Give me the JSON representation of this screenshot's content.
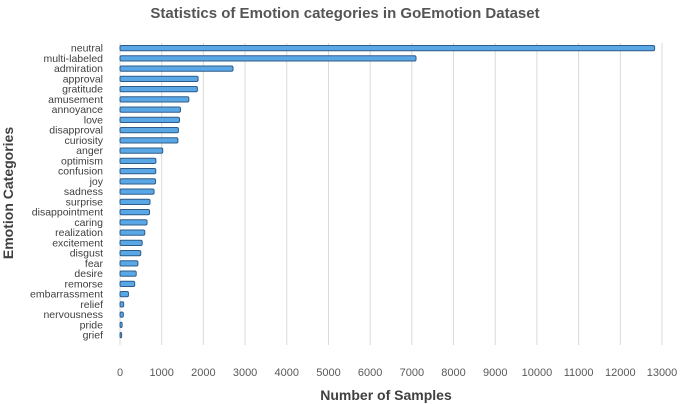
{
  "chart_data": {
    "type": "bar",
    "orientation": "horizontal",
    "title": "Statistics of Emotion categories in GoEmotion Dataset",
    "xlabel": "Number of Samples",
    "ylabel": "Emotion Categories",
    "xlim": [
      0,
      13000
    ],
    "xticks": [
      0,
      1000,
      2000,
      3000,
      4000,
      5000,
      6000,
      7000,
      8000,
      9000,
      10000,
      11000,
      12000,
      13000
    ],
    "grid": true,
    "categories": [
      "neutral",
      "multi-labeled",
      "admiration",
      "approval",
      "gratitude",
      "amusement",
      "annoyance",
      "love",
      "disapproval",
      "curiosity",
      "anger",
      "optimism",
      "confusion",
      "joy",
      "sadness",
      "surprise",
      "disappointment",
      "caring",
      "realization",
      "excitement",
      "disgust",
      "fear",
      "desire",
      "remorse",
      "embarrassment",
      "relief",
      "nervousness",
      "pride",
      "grief"
    ],
    "values": [
      12823,
      7100,
      2710,
      1873,
      1857,
      1652,
      1451,
      1427,
      1402,
      1389,
      1025,
      861,
      858,
      853,
      817,
      720,
      709,
      649,
      595,
      532,
      498,
      430,
      389,
      353,
      203,
      88,
      80,
      51,
      39
    ],
    "bar_color": "#5aa7e6",
    "bar_edge_color": "#2e5c8a"
  }
}
